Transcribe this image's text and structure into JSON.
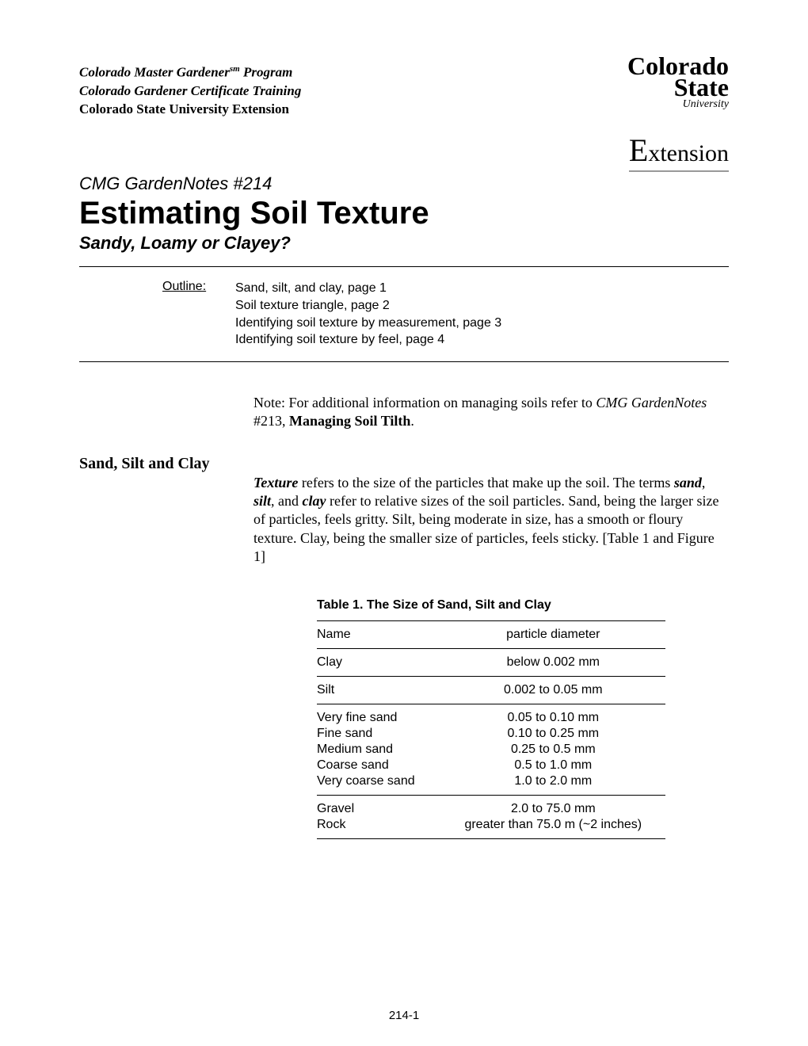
{
  "header": {
    "program": "Colorado Master Gardener",
    "program_sup": "sm",
    "program_suffix": " Program",
    "training": "Colorado Gardener Certificate Training",
    "extension": "Colorado State University Extension"
  },
  "logo": {
    "line1": "Colorado",
    "line2": "State",
    "line3": "University",
    "ext_prefix": "E",
    "ext_rest": "xtension"
  },
  "doc_number": "CMG GardenNotes #214",
  "title": "Estimating Soil Texture",
  "subtitle": "Sandy, Loamy or Clayey?",
  "outline": {
    "label": "Outline:",
    "items": [
      "Sand, silt, and clay, page 1",
      "Soil texture triangle, page 2",
      "Identifying soil texture by measurement, page 3",
      "Identifying soil texture by feel, page 4"
    ]
  },
  "note": {
    "prefix": "Note: For additional information on managing soils refer to ",
    "italic": "CMG GardenNotes",
    "rest": " #213, ",
    "bold": "Managing Soil Tilth",
    "end": "."
  },
  "section": {
    "heading": "Sand, Silt and Clay",
    "body_bold1": "Texture",
    "body_part1": " refers to the size of the particles that make up the soil.  The terms ",
    "body_bold2": "sand",
    "body_part2": ", ",
    "body_bold3": "silt",
    "body_part3": ", and ",
    "body_bold4": "clay",
    "body_part4": " refer to relative sizes of the soil particles.  Sand, being the larger size of particles, feels gritty.  Silt, being moderate in size, has a smooth or floury texture.   Clay, being the smaller size of particles, feels sticky.  [Table 1 and Figure 1]"
  },
  "table": {
    "title": "Table 1.  The Size of Sand, Silt and Clay",
    "columns": [
      "Name",
      "particle diameter"
    ],
    "groups": [
      [
        {
          "name": "Clay",
          "diameter": "below 0.002 mm"
        }
      ],
      [
        {
          "name": "Silt",
          "diameter": "0.002 to 0.05 mm"
        }
      ],
      [
        {
          "name": "Very fine sand",
          "diameter": "0.05 to 0.10 mm"
        },
        {
          "name": "Fine sand",
          "diameter": "0.10 to 0.25 mm"
        },
        {
          "name": "Medium sand",
          "diameter": "0.25 to 0.5 mm"
        },
        {
          "name": "Coarse sand",
          "diameter": "0.5 to 1.0 mm"
        },
        {
          "name": "Very coarse sand",
          "diameter": "1.0 to 2.0 mm"
        }
      ],
      [
        {
          "name": "Gravel",
          "diameter": "2.0 to 75.0 mm"
        },
        {
          "name": "Rock",
          "diameter": "greater than 75.0 m (~2 inches)"
        }
      ]
    ]
  },
  "footer": "214-1"
}
